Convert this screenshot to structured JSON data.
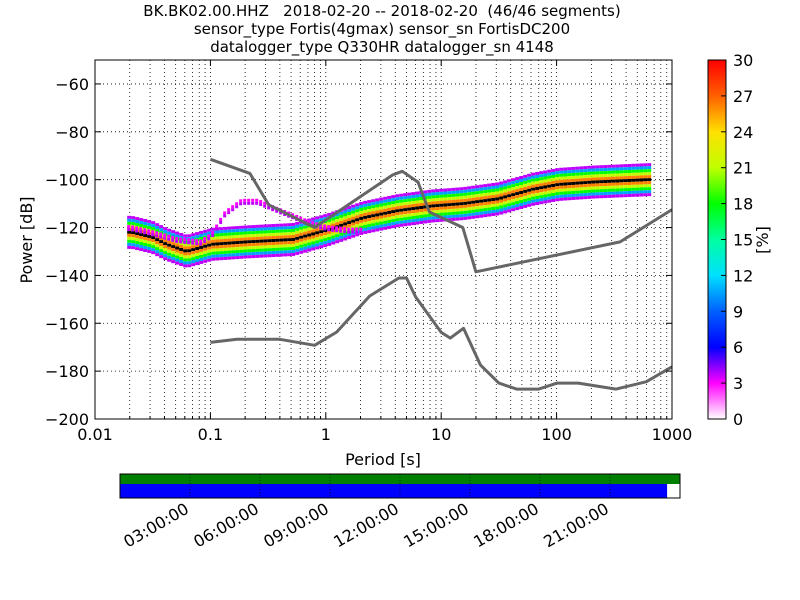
{
  "title": {
    "line1": "BK.BK02.00.HHZ   2018-02-20 -- 2018-02-20  (46/46 segments)",
    "line2": "sensor_type Fortis(4gmax) sensor_sn FortisDC200",
    "line3": "datalogger_type Q330HR datalogger_sn 4148"
  },
  "colorbar": {
    "label": "[%]",
    "ticks": [
      "0",
      "3",
      "6",
      "9",
      "12",
      "15",
      "18",
      "21",
      "24",
      "27",
      "30"
    ],
    "range": [
      0,
      30
    ]
  },
  "timeline": {
    "ticks": [
      "03:00:00",
      "06:00:00",
      "09:00:00",
      "12:00:00",
      "15:00:00",
      "18:00:00",
      "21:00:00"
    ],
    "top_bar_color": "#008000",
    "data_bar_color": "#0000ff",
    "data_coverage_fraction": 0.977
  },
  "chart_data": {
    "type": "heatmap",
    "subtype": "probabilistic power spectral density",
    "xlabel": "Period [s]",
    "ylabel": "Power [dB]",
    "xscale": "log",
    "xlim": [
      0.01,
      1000
    ],
    "ylim": [
      -200,
      -50
    ],
    "x_ticks": [
      "0.01",
      "0.1",
      "1",
      "10",
      "100",
      "1000"
    ],
    "y_ticks": [
      "−200",
      "−180",
      "−160",
      "−140",
      "−120",
      "−100",
      "−80",
      "−60"
    ],
    "y_tick_values": [
      -200,
      -180,
      -160,
      -140,
      -120,
      -100,
      -80,
      -60
    ],
    "grid": true,
    "noise_models": [
      {
        "name": "NHNM",
        "period": [
          0.1,
          0.22,
          0.32,
          0.8,
          3.8,
          4.6,
          6.3,
          7.9,
          15.4,
          20,
          354.8,
          1000
        ],
        "power": [
          -91.5,
          -97.4,
          -110.5,
          -120,
          -98,
          -96.5,
          -101,
          -113.5,
          -120,
          -138.5,
          -126,
          -112.5
        ]
      },
      {
        "name": "NLNM",
        "period": [
          0.1,
          0.17,
          0.4,
          0.8,
          1.24,
          2.4,
          4.3,
          5,
          6,
          10,
          12,
          15.6,
          21.9,
          31.6,
          45,
          70,
          101,
          154,
          328,
          600,
          1000
        ],
        "power": [
          -168,
          -166.7,
          -166.7,
          -169.2,
          -163.7,
          -148.6,
          -141.1,
          -141.1,
          -149,
          -163.8,
          -166.2,
          -162.1,
          -177.5,
          -185,
          -187.5,
          -187.5,
          -185,
          -185,
          -187.5,
          -184.4,
          -178.2
        ]
      }
    ],
    "mode_curve": {
      "period": [
        0.02,
        0.03,
        0.04,
        0.06,
        0.1,
        0.2,
        0.5,
        1,
        2,
        4,
        8,
        15,
        30,
        60,
        100,
        200,
        600
      ],
      "power": [
        -122,
        -124,
        -127,
        -130,
        -127,
        -126,
        -125,
        -121,
        -116,
        -113,
        -111,
        -110,
        -108,
        -104,
        -102,
        -101,
        -100
      ]
    },
    "outlier_curve": {
      "period": [
        0.02,
        0.03,
        0.05,
        0.08,
        0.1,
        0.13,
        0.18,
        0.25,
        0.35,
        0.5,
        0.7,
        1,
        1.5,
        2
      ],
      "power": [
        -119,
        -121,
        -124,
        -125,
        -122,
        -113,
        -108,
        -108,
        -111,
        -114,
        -117,
        -119,
        -120,
        -120
      ]
    }
  }
}
